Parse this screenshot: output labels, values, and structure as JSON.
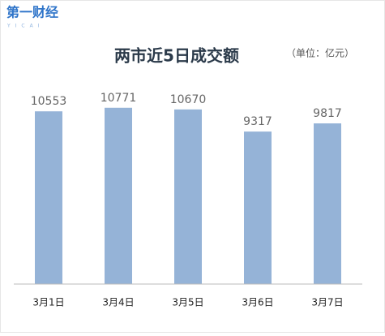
{
  "logo": {
    "name": "第一财经",
    "sub": "YICAI"
  },
  "chart_data": {
    "type": "bar",
    "title": "两市近5日成交额",
    "subtitle": "（单位：亿元）",
    "categories": [
      "3月1日",
      "3月4日",
      "3月5日",
      "3月6日",
      "3月7日"
    ],
    "values": [
      10553,
      10771,
      10670,
      9317,
      9817
    ],
    "color": "#95b3d7",
    "ylim": [
      0,
      12000
    ],
    "grid": false
  }
}
